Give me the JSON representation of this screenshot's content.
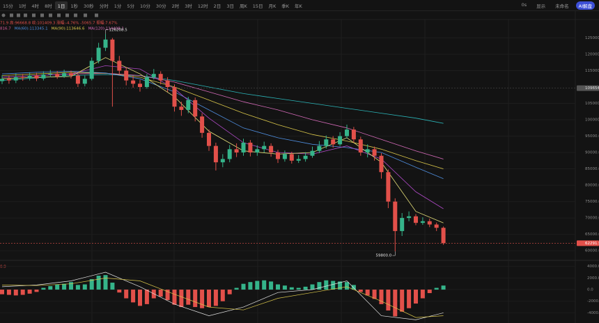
{
  "toolbar": {
    "intervals": [
      "15分",
      "1时",
      "4时",
      "8时",
      "1日",
      "1秒",
      "30秒",
      "分时",
      "1分",
      "5分",
      "10分",
      "30分",
      "2时",
      "3时",
      "12时",
      "2日",
      "3日",
      "周K",
      "15日",
      "月K",
      "季K",
      "年K"
    ],
    "selected": 4,
    "right": [
      "0s",
      "显示",
      "未命名",
      "AI解盘"
    ]
  },
  "chart_data": {
    "type": "candlestick",
    "info": "71.9 高:96668.8 收:101409.3 涨幅:-4.76% -5065.7 振幅:7.67%",
    "ma_legend": [
      {
        "name": "816.7",
        "color": "#d65a9a"
      },
      {
        "name": "MA(60):113345.1",
        "color": "#4f8fe0"
      },
      {
        "name": "MA(90):113646.6",
        "color": "#d9c64a"
      },
      {
        "name": "MA(120):114408.1",
        "color": "#d46ab8"
      }
    ],
    "ylim": [
      57900,
      130200
    ],
    "yticks": [
      {
        "value": 125000,
        "label": "125000.0"
      },
      {
        "value": 120000,
        "label": "120000.0"
      },
      {
        "value": 115000,
        "label": "115000.0"
      },
      {
        "value": 105000,
        "label": "105000.0"
      },
      {
        "value": 100000,
        "label": "100000.0"
      },
      {
        "value": 95000,
        "label": "95000.0"
      },
      {
        "value": 90000,
        "label": "90000.0"
      },
      {
        "value": 85000,
        "label": "85000.0"
      },
      {
        "value": 80000,
        "label": "80000.0"
      },
      {
        "value": 75000,
        "label": "75000.0"
      },
      {
        "value": 70000,
        "label": "70000.0"
      },
      {
        "value": 65000,
        "label": "65000.0"
      },
      {
        "value": 60000,
        "label": "60000.0"
      }
    ],
    "up_color": "#35b48a",
    "down_color": "#e2504a",
    "open": [
      111800,
      112500,
      112000,
      113000,
      112800,
      113500,
      112600,
      113800,
      114000,
      113200,
      114200,
      113500,
      111000,
      112500,
      118000,
      122000,
      124500,
      118000,
      115000,
      112000,
      111000,
      110000,
      113000,
      114000,
      112000,
      110000,
      104000,
      103000,
      106000,
      101000,
      96000,
      92000,
      87000,
      88000,
      91000,
      90000,
      93000,
      90000,
      91000,
      92000,
      90000,
      88000,
      89500,
      87500,
      88000,
      89000,
      90500,
      92000,
      94000,
      92500,
      95000,
      97000,
      94000,
      90000,
      91000,
      89000,
      84000,
      75000,
      66000,
      70000,
      70500,
      68500,
      69000,
      68000,
      67000
    ],
    "high": [
      113600,
      113400,
      114100,
      114000,
      114500,
      114300,
      114800,
      115200,
      114900,
      115300,
      115000,
      114000,
      113500,
      119000,
      123500,
      126208.5,
      125000,
      119500,
      116000,
      113500,
      112200,
      114000,
      115500,
      114800,
      113000,
      110800,
      105500,
      107000,
      106800,
      102000,
      97000,
      93000,
      89500,
      92300,
      92800,
      94200,
      93800,
      92200,
      93300,
      92800,
      90800,
      90600,
      90200,
      89200,
      90100,
      91800,
      93500,
      95200,
      95000,
      96200,
      98500,
      97800,
      94800,
      92500,
      91800,
      89800,
      84800,
      76000,
      71500,
      72000,
      71200,
      70200,
      69800,
      68600,
      67400
    ],
    "low": [
      110900,
      111000,
      111200,
      111900,
      112000,
      111800,
      112000,
      113000,
      112500,
      112800,
      112600,
      110000,
      110200,
      112000,
      117200,
      121000,
      104000,
      113800,
      110500,
      109800,
      108600,
      109500,
      112300,
      110800,
      108500,
      102500,
      101200,
      102000,
      99500,
      94500,
      90500,
      84500,
      85500,
      87000,
      88600,
      89000,
      88800,
      89000,
      90000,
      88700,
      86800,
      87200,
      86600,
      86800,
      87200,
      88400,
      89800,
      91200,
      91500,
      92000,
      94300,
      93000,
      89000,
      88500,
      87500,
      82000,
      73000,
      59800,
      64500,
      69000,
      67800,
      67900,
      67200,
      66000,
      61800
    ],
    "close": [
      112500,
      112000,
      113000,
      112800,
      113500,
      112600,
      113800,
      114000,
      113200,
      114200,
      113500,
      111000,
      112500,
      118000,
      122000,
      124500,
      118000,
      115000,
      112000,
      111000,
      110000,
      113000,
      114000,
      112000,
      110000,
      104000,
      103000,
      106000,
      101000,
      96000,
      92000,
      87000,
      88000,
      91000,
      90000,
      93000,
      90000,
      91000,
      92000,
      90000,
      88000,
      89500,
      87500,
      88000,
      89000,
      90500,
      92000,
      94000,
      92500,
      95000,
      97000,
      94000,
      90000,
      91000,
      89000,
      84000,
      75000,
      66000,
      70000,
      70500,
      68500,
      69000,
      68000,
      67000,
      62291.9
    ],
    "ma_x": [
      0,
      5,
      10,
      15,
      20,
      25,
      30,
      35,
      40,
      45,
      50,
      55,
      60,
      64
    ],
    "ma_lines": [
      {
        "color": "#2bb5b8",
        "values": [
          112000,
          112800,
          113500,
          113800,
          113500,
          112000,
          110000,
          108000,
          106500,
          105000,
          103500,
          102000,
          100500,
          98900
        ]
      },
      {
        "color": "#d46ab8",
        "values": [
          113000,
          113500,
          114000,
          114200,
          113500,
          111500,
          108500,
          105500,
          103000,
          100000,
          97500,
          94000,
          90500,
          88000
        ]
      },
      {
        "color": "#d9c64a",
        "values": [
          113500,
          114000,
          114500,
          114200,
          113000,
          110000,
          106000,
          102000,
          98500,
          95500,
          93500,
          91000,
          87500,
          85000
        ]
      },
      {
        "color": "#4f8fe0",
        "values": [
          114000,
          114500,
          114800,
          114300,
          112500,
          108500,
          103000,
          97500,
          94500,
          92500,
          91500,
          90000,
          85500,
          82000
        ]
      },
      {
        "color": "#b04ac8",
        "values": [
          113000,
          113500,
          114000,
          116500,
          115500,
          109500,
          100500,
          93000,
          90000,
          89500,
          92000,
          88000,
          78000,
          72800
        ]
      },
      {
        "color": "#e8e27a",
        "values": [
          112500,
          113000,
          113200,
          119000,
          114000,
          107000,
          96500,
          90500,
          89500,
          90000,
          94500,
          87000,
          72000,
          68500
        ]
      }
    ],
    "annotations": [
      {
        "index": 15,
        "value": 126208.5,
        "label": "126208.5"
      },
      {
        "index": 57,
        "value": 59800,
        "label": "59800.0"
      }
    ],
    "ref_price": {
      "value": 109654.9,
      "label": "109654.9"
    },
    "last_price": {
      "value": 62291.9,
      "label": "62291.9"
    },
    "macd": {
      "legend": "0.9",
      "ylim": [
        -5750,
        4800
      ],
      "yticks": [
        {
          "value": 4000,
          "label": "4000.0"
        },
        {
          "value": 2000,
          "label": "2000.0"
        },
        {
          "value": 0,
          "label": "0.0"
        },
        {
          "value": -2000,
          "label": "-2000.0"
        },
        {
          "value": -4000,
          "label": "-4000.0"
        }
      ],
      "histogram": [
        -800,
        -900,
        -1000,
        -900,
        -700,
        -400,
        300,
        600,
        900,
        1000,
        1300,
        800,
        900,
        1800,
        2400,
        2500,
        1200,
        -500,
        -1500,
        -2200,
        -2800,
        -2500,
        -1500,
        -1200,
        -1800,
        -2600,
        -3000,
        -2600,
        -3000,
        -3200,
        -3000,
        -2800,
        -2000,
        -800,
        300,
        1000,
        1300,
        1500,
        1600,
        1400,
        900,
        700,
        400,
        300,
        500,
        900,
        1300,
        1600,
        1500,
        1400,
        1300,
        800,
        -400,
        -1000,
        -1600,
        -2500,
        -3600,
        -4600,
        -3800,
        -3200,
        -2400,
        -1500,
        -600,
        300,
        700
      ],
      "lines": [
        {
          "color": "#e6e6e6",
          "values": [
            500,
            800,
            1500,
            3000,
            500,
            -2500,
            -4500,
            -3000,
            -500,
            0,
            1500,
            -4500,
            -5200,
            -4000
          ]
        },
        {
          "color": "#d9c64a",
          "values": [
            800,
            700,
            1000,
            2000,
            1500,
            -800,
            -3000,
            -3500,
            -1500,
            -500,
            500,
            -2000,
            -4800,
            -4500
          ]
        }
      ]
    }
  }
}
